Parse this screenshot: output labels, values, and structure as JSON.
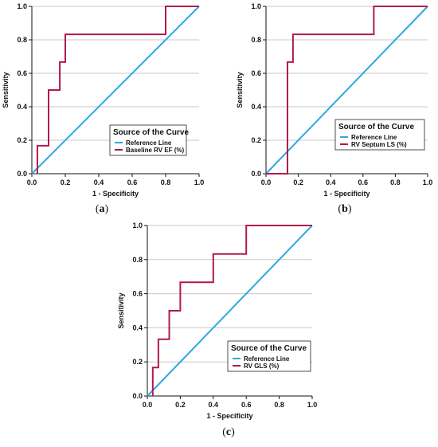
{
  "colors": {
    "reference": "#2ea8e0",
    "roc": "#b01a4e",
    "grid": "#c8c8c8",
    "axis": "#111111"
  },
  "chart_data": [
    {
      "type": "line",
      "panel_label": "a",
      "xlabel": "1 - Specificity",
      "ylabel": "Sensitivity",
      "xlim": [
        0,
        1
      ],
      "ylim": [
        0,
        1
      ],
      "xticks": [
        "0.0",
        "0.2",
        "0.4",
        "0.6",
        "0.8",
        "1.0"
      ],
      "yticks": [
        "0.0",
        "0.2",
        "0.4",
        "0.6",
        "0.8",
        "1.0"
      ],
      "grid": "horizontal",
      "legend_title": "Source of the Curve",
      "legend_position": "bottom-right",
      "series": [
        {
          "name": "Reference Line",
          "color": "#2ea8e0",
          "x": [
            0,
            1
          ],
          "y": [
            0,
            1
          ]
        },
        {
          "name": "Baseline RV EF (%)",
          "color": "#b01a4e",
          "x": [
            0.033,
            0.033,
            0.1,
            0.1,
            0.167,
            0.167,
            0.2,
            0.2,
            0.8,
            0.8,
            1.0
          ],
          "y": [
            0.0,
            0.167,
            0.167,
            0.5,
            0.5,
            0.667,
            0.667,
            0.833,
            0.833,
            1.0,
            1.0
          ]
        }
      ]
    },
    {
      "type": "line",
      "panel_label": "b",
      "xlabel": "1 - Specificity",
      "ylabel": "Sensitivity",
      "xlim": [
        0,
        1
      ],
      "ylim": [
        0,
        1
      ],
      "xticks": [
        "0.0",
        "0.2",
        "0.4",
        "0.6",
        "0.8",
        "1.0"
      ],
      "yticks": [
        "0.0",
        "0.2",
        "0.4",
        "0.6",
        "0.8",
        "1.0"
      ],
      "grid": "horizontal",
      "legend_title": "Source of the Curve",
      "legend_position": "bottom-right",
      "series": [
        {
          "name": "Reference Line",
          "color": "#2ea8e0",
          "x": [
            0,
            1
          ],
          "y": [
            0,
            1
          ]
        },
        {
          "name": "RV Septum LS  (%)",
          "color": "#b01a4e",
          "x": [
            0.0,
            0.133,
            0.133,
            0.167,
            0.167,
            0.667,
            0.667,
            1.0
          ],
          "y": [
            0.0,
            0.0,
            0.667,
            0.667,
            0.833,
            0.833,
            1.0,
            1.0
          ]
        }
      ]
    },
    {
      "type": "line",
      "panel_label": "c",
      "xlabel": "1 - Specificity",
      "ylabel": "Sensitivity",
      "xlim": [
        0,
        1
      ],
      "ylim": [
        0,
        1
      ],
      "xticks": [
        "0.0",
        "0.2",
        "0.4",
        "0.6",
        "0.8",
        "1.0"
      ],
      "yticks": [
        "0.0",
        "0.2",
        "0.4",
        "0.6",
        "0.8",
        "1.0"
      ],
      "grid": "horizontal",
      "legend_title": "Source of the Curve",
      "legend_position": "bottom-right",
      "series": [
        {
          "name": "Reference Line",
          "color": "#2ea8e0",
          "x": [
            0,
            1
          ],
          "y": [
            0,
            1
          ]
        },
        {
          "name": "RV GLS  (%)",
          "color": "#b01a4e",
          "x": [
            0.033,
            0.033,
            0.067,
            0.067,
            0.133,
            0.133,
            0.167,
            0.167,
            0.2,
            0.2,
            0.4,
            0.4,
            0.6,
            0.6,
            1.0
          ],
          "y": [
            0.0,
            0.167,
            0.167,
            0.333,
            0.333,
            0.5,
            0.5,
            0.5,
            0.5,
            0.667,
            0.667,
            0.833,
            0.833,
            1.0,
            1.0
          ]
        }
      ]
    }
  ]
}
